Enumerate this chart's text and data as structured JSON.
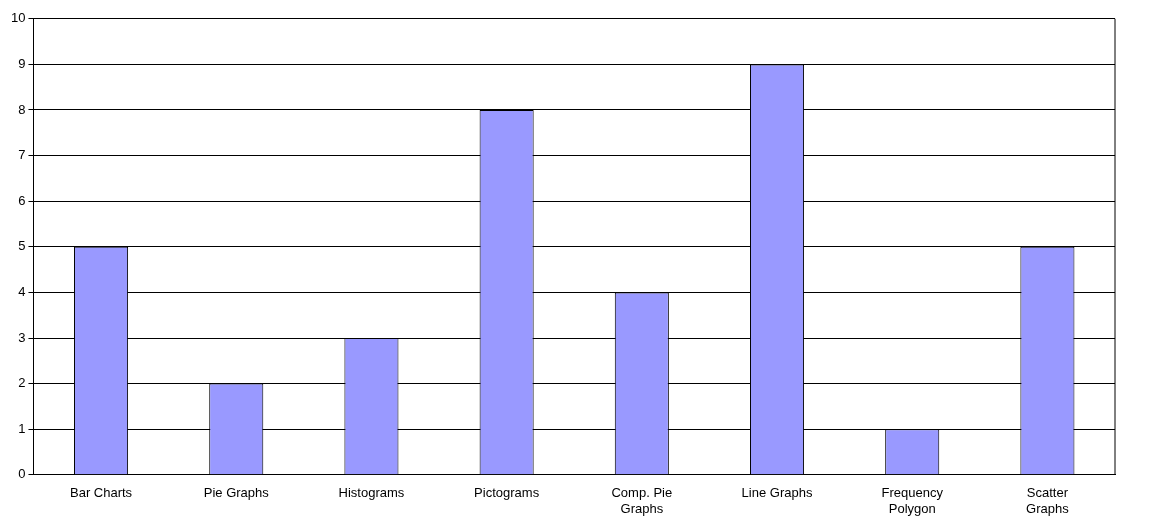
{
  "chart_data": {
    "type": "bar",
    "categories": [
      "Bar Charts",
      "Pie Graphs",
      "Histograms",
      "Pictograms",
      "Comp. Pie Graphs",
      "Line Graphs",
      "Frequency Polygon",
      "Scatter Graphs"
    ],
    "values": [
      5,
      2,
      3,
      8,
      4,
      9,
      1,
      5
    ],
    "color": "#9999ff",
    "ylim": [
      0,
      10
    ],
    "yticks": [
      0,
      1,
      2,
      3,
      4,
      5,
      6,
      7,
      8,
      9,
      10
    ],
    "grid": "y",
    "legend": false
  }
}
